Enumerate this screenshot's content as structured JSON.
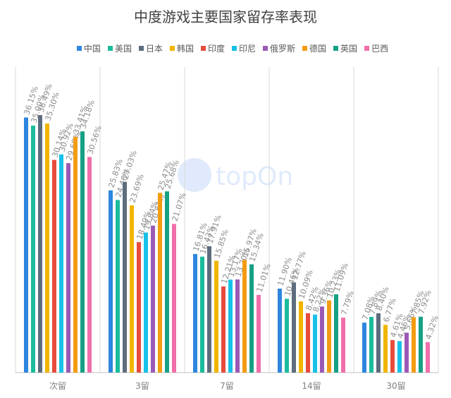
{
  "chart_data": {
    "type": "bar",
    "title": "中度游戏主要国家留存率表现",
    "categories": [
      "次留",
      "3留",
      "7留",
      "14留",
      "30留"
    ],
    "series": [
      {
        "name": "中国",
        "color": "#2E86DE",
        "values": [
          36.15,
          25.83,
          16.81,
          11.9,
          7.08
        ],
        "labels": [
          "36.15%",
          "25.83%",
          "16.81%",
          "11.90%",
          "7.08%"
        ]
      },
      {
        "name": "美国",
        "color": "#1ABC9C",
        "values": [
          35.0,
          24.46,
          16.43,
          10.46,
          7.89
        ],
        "labels": [
          "35.00%",
          "24.46%",
          "16.43%",
          "10.46%",
          "7.89%"
        ]
      },
      {
        "name": "日本",
        "color": "#5D6D7E",
        "values": [
          36.49,
          27.03,
          17.91,
          12.77,
          8.4
        ],
        "labels": [
          "36.49%",
          "27.03%",
          "17.91%",
          "12.77%",
          "8.40%"
        ]
      },
      {
        "name": "韩国",
        "color": "#F1B500",
        "values": [
          35.3,
          23.69,
          15.85,
          10.09,
          6.77
        ],
        "labels": [
          "35.30%",
          "23.69%",
          "15.85%",
          "10.09%",
          "6.77%"
        ]
      },
      {
        "name": "印度",
        "color": "#E74C3C",
        "values": [
          30.14,
          18.49,
          12.21,
          8.42,
          4.61
        ],
        "labels": [
          "30.14%",
          "18.49%",
          "12.21%",
          "8.42%",
          "4.61%"
        ]
      },
      {
        "name": "印尼",
        "color": "#17C1E8",
        "values": [
          30.92,
          19.84,
          13.17,
          8.22,
          4.46
        ],
        "labels": [
          "30.92%",
          "19.84%",
          "13.17%",
          "8.22%",
          "4.46%"
        ]
      },
      {
        "name": "俄罗斯",
        "color": "#9B59B6",
        "values": [
          29.68,
          20.83,
          13.2,
          9.36,
          5.66
        ],
        "labels": [
          "29.68%",
          "20.83%",
          "13.20%",
          "9.36%",
          "5.66%"
        ]
      },
      {
        "name": "德国",
        "color": "#F39C12",
        "values": [
          33.41,
          25.47,
          15.97,
          10.23,
          7.85
        ],
        "labels": [
          "33.41%",
          "25.47%",
          "15.97%",
          "10.23%",
          "7.85%"
        ]
      },
      {
        "name": "英国",
        "color": "#16A085",
        "values": [
          34.18,
          25.68,
          15.34,
          11.09,
          7.92
        ],
        "labels": [
          "34.18%",
          "25.68%",
          "15.34%",
          "11.09%",
          "7.92%"
        ]
      },
      {
        "name": "巴西",
        "color": "#F06EAA",
        "values": [
          30.56,
          21.07,
          11.01,
          7.79,
          4.32
        ],
        "labels": [
          "30.56%",
          "21.07%",
          "11.01%",
          "7.79%",
          "4.32%"
        ]
      }
    ],
    "ylim": [
      0,
      40
    ],
    "grid": false,
    "legend_position": "top",
    "watermark": "topOn"
  }
}
